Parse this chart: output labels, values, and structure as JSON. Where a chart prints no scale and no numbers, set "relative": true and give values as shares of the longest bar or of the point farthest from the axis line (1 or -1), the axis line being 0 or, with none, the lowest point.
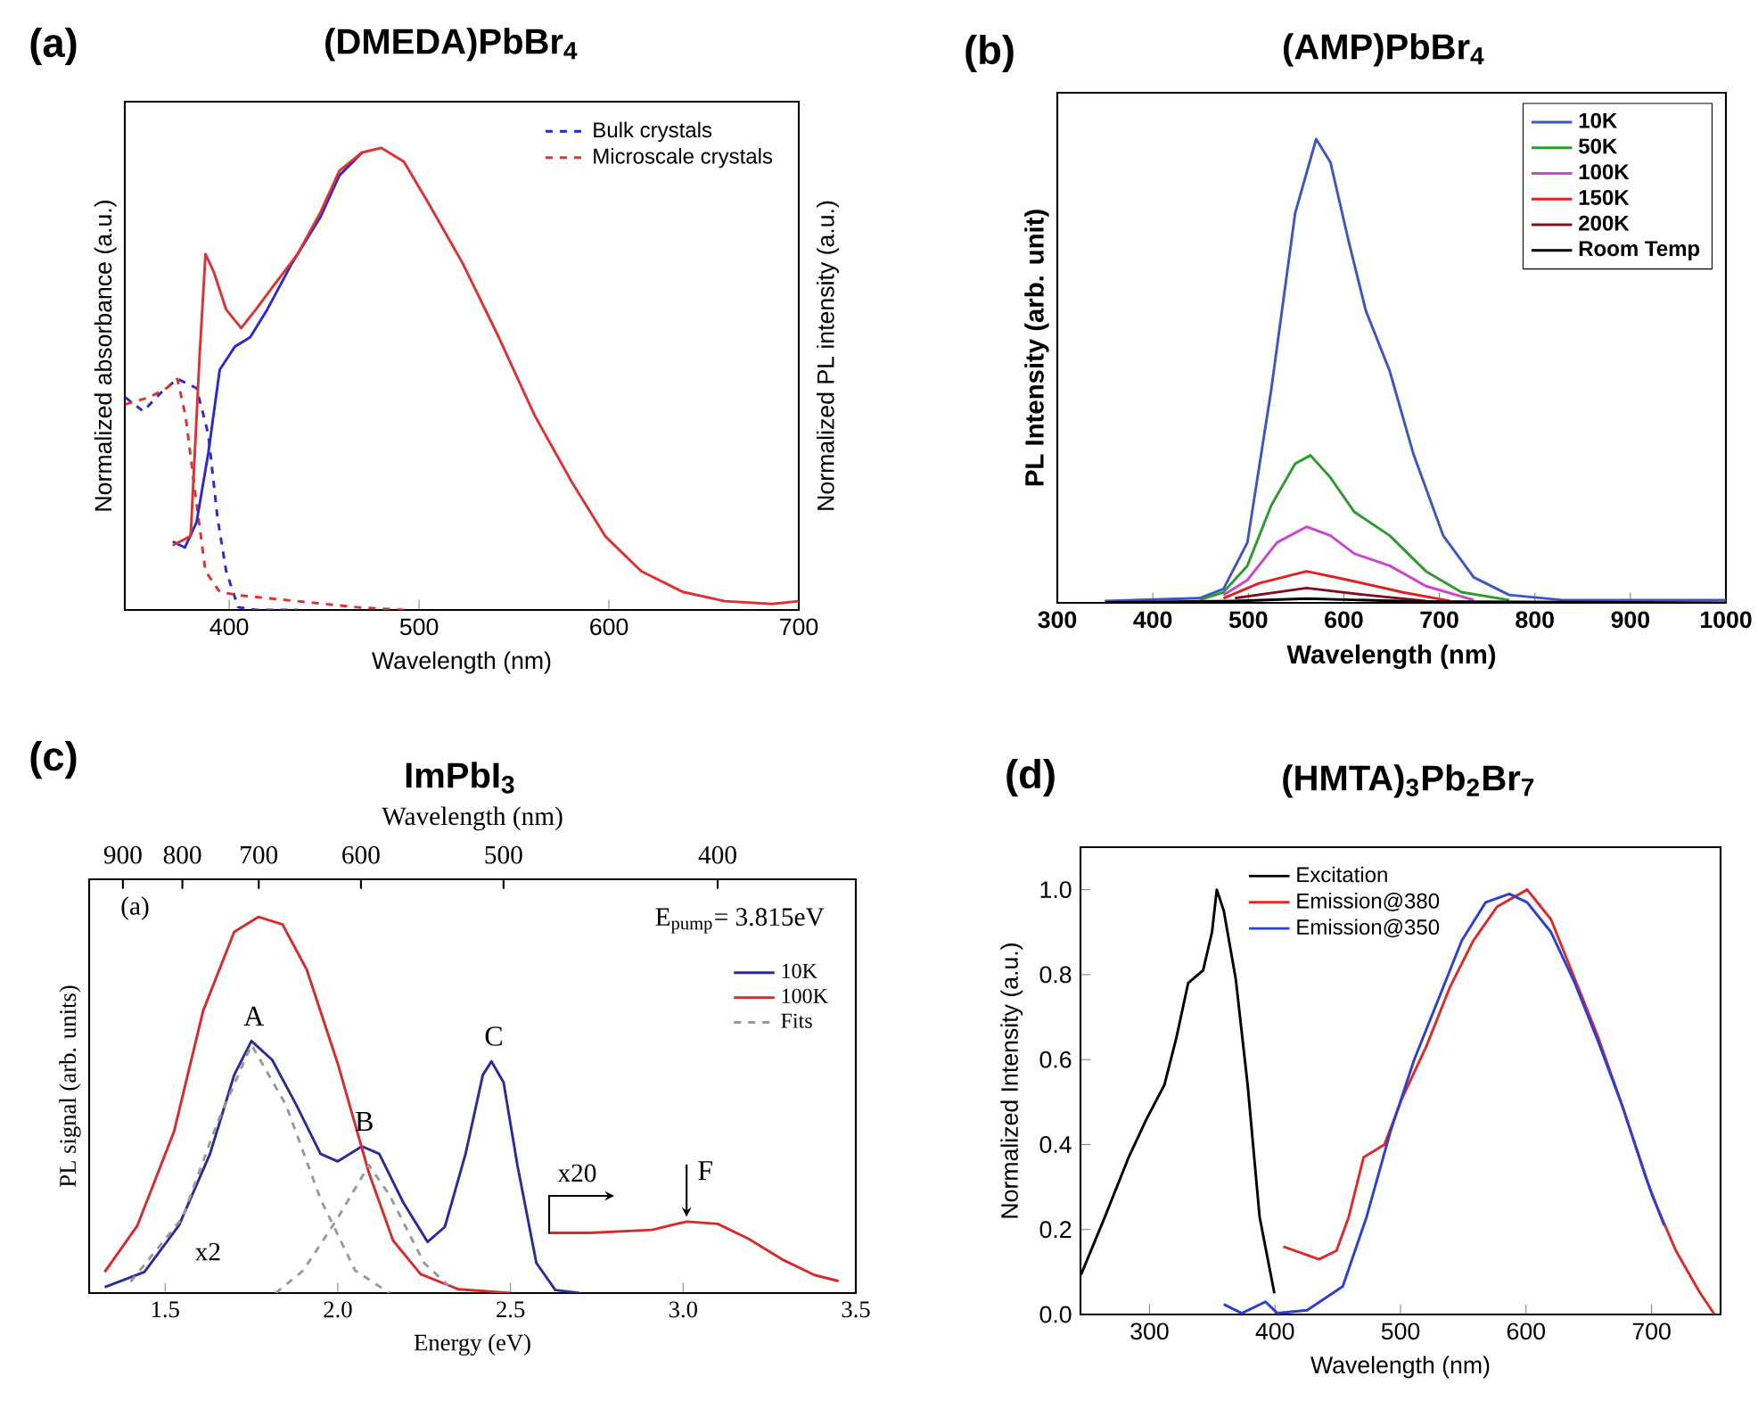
{
  "chart_data": [
    {
      "type": "line",
      "title": "(DMEDA)PbBr$_{4}$",
      "xlabel": "Wavelength (nm)",
      "ylabel": "Normalized absorbance (a.u.)",
      "y2label": "Normalized PL intensity (a.u.)",
      "relative": true,
      "xlim": [
        345,
        700
      ],
      "xticks": [
        400,
        500,
        600,
        700
      ],
      "legend": "top right",
      "annotations": [
        "(a)"
      ],
      "series": [
        {
          "name": "Bulk crystals",
          "color": "#2a2ad0",
          "line_style": "dashed",
          "x": [
            345.3,
            354.7,
            364,
            372.7,
            382.8,
            389,
            393.8,
            398.4,
            404.7,
            414,
            436
          ],
          "values": [
            0.46,
            0.43,
            0.47,
            0.5,
            0.48,
            0.38,
            0.2,
            0.084,
            0.006,
            0,
            0
          ]
        },
        {
          "name": "Microscale crystals",
          "color": "#e03030",
          "line_style": "dashed",
          "x": [
            345.3,
            357.8,
            367,
            372.7,
            377,
            382.8,
            387.5,
            395,
            404.7,
            436,
            467,
            492
          ],
          "values": [
            0.445,
            0.46,
            0.48,
            0.5,
            0.42,
            0.23,
            0.084,
            0.039,
            0.032,
            0.019,
            0.006,
            0
          ]
        },
        {
          "color": "#2a2ad0",
          "x": [
            370.3,
            376.6,
            382.8,
            389,
            395,
            403,
            411,
            420,
            433,
            448,
            458,
            470
          ],
          "values": [
            0.148,
            0.135,
            0.19,
            0.34,
            0.52,
            0.57,
            0.59,
            0.65,
            0.75,
            0.85,
            0.94,
            0.99
          ]
        },
        {
          "color": "#e03030",
          "x": [
            370.3,
            379.7,
            384.4,
            387.5,
            392,
            398.4,
            406.3,
            414,
            423,
            436,
            448,
            458,
            470,
            480,
            492,
            505,
            523,
            542,
            561,
            580,
            598,
            617,
            639,
            661,
            686,
            700
          ],
          "values": [
            0.14,
            0.16,
            0.55,
            0.77,
            0.73,
            0.65,
            0.61,
            0.65,
            0.7,
            0.77,
            0.86,
            0.95,
            0.99,
            1.0,
            0.97,
            0.88,
            0.75,
            0.59,
            0.42,
            0.28,
            0.16,
            0.084,
            0.039,
            0.019,
            0.013,
            0.019
          ]
        }
      ]
    },
    {
      "type": "line",
      "title": "(AMP)PbBr$_{4}$",
      "xlabel": "Wavelength (nm)",
      "ylabel": "PL Intensity (arb. unit)",
      "relative": true,
      "xlim": [
        300,
        1000
      ],
      "xticks": [
        300,
        400,
        500,
        600,
        700,
        800,
        900,
        1000
      ],
      "legend": "top right",
      "annotations": [
        "(b)"
      ],
      "series": [
        {
          "name": "10K",
          "color": "#3d55c4",
          "x": [
            349.8,
            449,
            474,
            499,
            524,
            549,
            571,
            586,
            605,
            623,
            648,
            673,
            704,
            736,
            773,
            829,
            1000
          ],
          "values": [
            0.004,
            0.01,
            0.03,
            0.13,
            0.46,
            0.84,
            1.0,
            0.95,
            0.78,
            0.63,
            0.5,
            0.32,
            0.145,
            0.055,
            0.017,
            0.006,
            0.006
          ]
        },
        {
          "name": "50K",
          "color": "#2e9a2e",
          "x": [
            449,
            474,
            499,
            524,
            549,
            565,
            586,
            611,
            648,
            686,
            723,
            773
          ],
          "values": [
            0.006,
            0.023,
            0.08,
            0.21,
            0.3,
            0.318,
            0.27,
            0.196,
            0.145,
            0.068,
            0.023,
            0.006
          ]
        },
        {
          "name": "100K",
          "color": "#cc44cc",
          "x": [
            474,
            499,
            530,
            561,
            586,
            611,
            648,
            686,
            736
          ],
          "values": [
            0.017,
            0.049,
            0.13,
            0.164,
            0.145,
            0.106,
            0.08,
            0.036,
            0.006
          ]
        },
        {
          "name": "150K",
          "color": "#e02020",
          "x": [
            474,
            511,
            561,
            605,
            661,
            711
          ],
          "values": [
            0.01,
            0.042,
            0.068,
            0.049,
            0.023,
            0.004
          ]
        },
        {
          "name": "200K",
          "color": "#801020",
          "x": [
            486,
            561,
            623,
            686
          ],
          "values": [
            0.01,
            0.032,
            0.017,
            0.004
          ]
        },
        {
          "name": "Room Temp",
          "color": "#000000",
          "x": [
            350,
            486,
            561,
            673,
            1000
          ],
          "values": [
            0.001,
            0.004,
            0.009,
            0.003,
            0
          ]
        }
      ]
    },
    {
      "type": "line",
      "title": "ImPbI$_{3}$",
      "xlabel": "Energy (eV)",
      "ylabel": "PL signal (arb. units)",
      "relative": true,
      "xlim": [
        1.28,
        3.5
      ],
      "xticks": [
        1.5,
        {
          "value": 2,
          "label": "2.0"
        },
        2.5,
        {
          "value": 3,
          "label": "3.0"
        },
        3.5
      ],
      "legend": "top right",
      "annotations": [
        "(c)",
        "(a)",
        "x2",
        "x20",
        "E$_{pump}$= 3.815eV",
        "Wavelength (nm)",
        "900",
        "800",
        "700",
        "600",
        "500",
        "400",
        {
          "text": "A",
          "x": 1.75,
          "y": 0.67
        },
        {
          "text": "B",
          "x": 2.07,
          "y": 0.39
        },
        {
          "text": "C",
          "x": 2.445,
          "y": 0.616
        },
        {
          "text": "F",
          "x": 3.01,
          "y": 0.19
        }
      ],
      "series": [
        {
          "name": "10K",
          "color": "#2b2b9c",
          "x": [
            1.325,
            1.44,
            1.54,
            1.63,
            1.7,
            1.75,
            1.81,
            1.88,
            1.95,
            2.0,
            2.07,
            2.12,
            2.19,
            2.26,
            2.31,
            2.37,
            2.42,
            2.445,
            2.48,
            2.52,
            2.575,
            2.63,
            2.7
          ],
          "values": [
            0.016,
            0.056,
            0.18,
            0.37,
            0.58,
            0.67,
            0.62,
            0.5,
            0.37,
            0.35,
            0.39,
            0.37,
            0.24,
            0.136,
            0.176,
            0.37,
            0.58,
            0.616,
            0.56,
            0.34,
            0.08,
            0.008,
            0
          ]
        },
        {
          "name": "100K",
          "color": "#d82a2a",
          "x": [
            1.325,
            1.42,
            1.526,
            1.61,
            1.7,
            1.77,
            1.84,
            1.91,
            2.0,
            2.09,
            2.16,
            2.24,
            2.35,
            2.5
          ],
          "values": [
            0.056,
            0.18,
            0.43,
            0.75,
            0.96,
            1.0,
            0.98,
            0.86,
            0.61,
            0.32,
            0.14,
            0.05,
            0.01,
            0
          ]
        },
        {
          "name": "Fits",
          "color": "#999999",
          "line_style": "dashed",
          "x": [
            1.4,
            1.55,
            1.65,
            1.75,
            1.85,
            1.95,
            2.05,
            2.15
          ],
          "values": [
            0.03,
            0.2,
            0.45,
            0.66,
            0.5,
            0.25,
            0.06,
            0
          ]
        },
        {
          "color": "#999999",
          "line_style": "dashed",
          "x": [
            1.82,
            1.9,
            2.0,
            2.09,
            2.15,
            2.25,
            2.32
          ],
          "values": [
            0,
            0.06,
            0.2,
            0.34,
            0.26,
            0.08,
            0.02
          ]
        },
        {
          "color": "#d82a2a",
          "x": [
            2.61,
            2.73,
            2.91,
            3.01,
            3.1,
            3.19,
            3.29,
            3.38,
            3.45
          ],
          "values": [
            0.16,
            0.16,
            0.168,
            0.19,
            0.184,
            0.144,
            0.088,
            0.048,
            0.032
          ]
        }
      ]
    },
    {
      "type": "line",
      "title": "(HMTA)$_{3}$Pb$_{2}$Br$_{7}$",
      "xlabel": "Wavelength (nm)",
      "ylabel": "Normalized Intensity (a.u.)",
      "xlim": [
        245,
        755
      ],
      "ylim": [
        0,
        1.1
      ],
      "xticks": [
        300,
        400,
        500,
        600,
        700
      ],
      "yticks": [
        {
          "value": 0,
          "label": "0.0"
        },
        0.2,
        0.4,
        0.6,
        0.8,
        {
          "value": 1,
          "label": "1.0"
        }
      ],
      "legend": "top",
      "annotations": [
        "(d)"
      ],
      "series": [
        {
          "name": "Excitation",
          "color": "#000000",
          "x": [
            245.5,
            264.5,
            283.4,
            297.6,
            311.8,
            321.3,
            330.8,
            342.7,
            349.8,
            353.6,
            359.2,
            368.7,
            378.2,
            387.7,
            399.5
          ],
          "values": [
            0.094,
            0.23,
            0.37,
            0.46,
            0.54,
            0.65,
            0.78,
            0.81,
            0.9,
            1.0,
            0.95,
            0.79,
            0.54,
            0.23,
            0.05
          ]
        },
        {
          "name": "Emission@380",
          "color": "#e02828",
          "x": [
            406.6,
            425.6,
            435,
            449,
            458.8,
            470.6,
            487.2,
            501.4,
            520.4,
            539.3,
            558,
            577,
            600.9,
            619.9,
            638.9,
            657.8,
            676.8,
            700.5,
            719.4,
            738.4,
            750.2
          ],
          "values": [
            0.16,
            0.14,
            0.13,
            0.15,
            0.23,
            0.37,
            0.4,
            0.51,
            0.63,
            0.77,
            0.88,
            0.96,
            1.0,
            0.93,
            0.79,
            0.65,
            0.49,
            0.28,
            0.15,
            0.052,
            0
          ]
        },
        {
          "name": "Emission@350",
          "color": "#2a3ed8",
          "x": [
            359.2,
            373.5,
            392.4,
            401.9,
            425.6,
            454,
            473,
            491.9,
            510.9,
            529.9,
            548.8,
            567.8,
            586.7,
            600.9,
            619.9,
            638.9,
            657.8,
            676.8,
            695.7,
            710
          ],
          "values": [
            0.024,
            0.003,
            0.03,
            0.003,
            0.01,
            0.066,
            0.23,
            0.43,
            0.6,
            0.74,
            0.88,
            0.97,
            0.99,
            0.97,
            0.9,
            0.78,
            0.64,
            0.49,
            0.32,
            0.21
          ]
        }
      ]
    }
  ]
}
